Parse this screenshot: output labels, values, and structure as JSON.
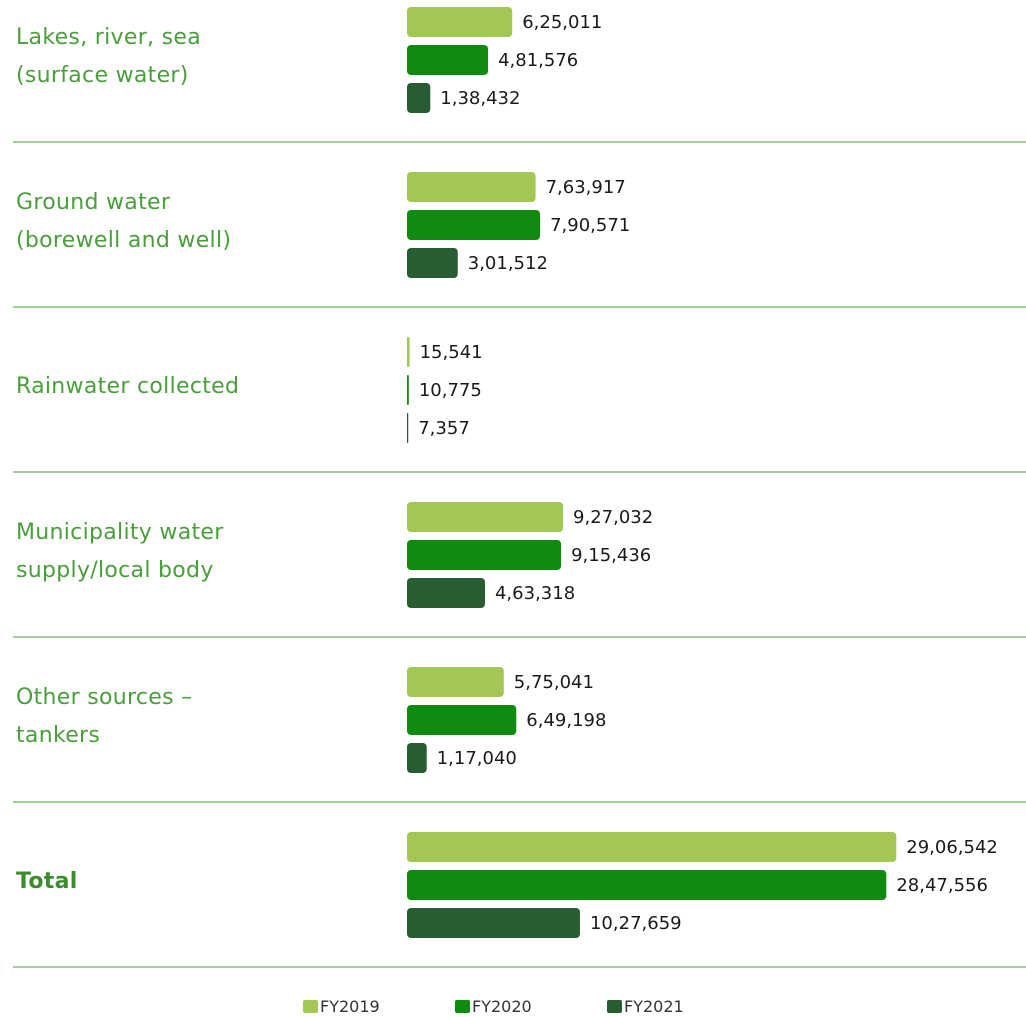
{
  "chart_data": {
    "type": "bar",
    "orientation": "horizontal",
    "categories": [
      "Lakes, river, sea\n(surface water)",
      "Ground water\n(borewell and well)",
      "Rainwater collected",
      "Municipality water\nsupply/local body",
      "Other sources –\ntankers",
      "Total"
    ],
    "series": [
      {
        "name": "FY2019",
        "color": "#a2c754",
        "values": [
          625011,
          763917,
          15541,
          927032,
          575041,
          2906542
        ],
        "value_labels": [
          "6,25,011",
          "7,63,917",
          "15,541",
          "9,27,032",
          "5,75,041",
          "29,06,542"
        ]
      },
      {
        "name": "FY2020",
        "color": "#0f8c0f",
        "values": [
          481576,
          790571,
          10775,
          915436,
          649198,
          2847556
        ],
        "value_labels": [
          "4,81,576",
          "7,90,571",
          "10,775",
          "9,15,436",
          "6,49,198",
          "28,47,556"
        ]
      },
      {
        "name": "FY2021",
        "color": "#285c33",
        "values": [
          138432,
          301512,
          7357,
          463318,
          117040,
          1027659
        ],
        "value_labels": [
          "1,38,432",
          "3,01,512",
          "7,357",
          "4,63,318",
          "1,17,040",
          "10,27,659"
        ]
      }
    ],
    "xlim": [
      0,
      3000000
    ],
    "legend": "bottom"
  }
}
